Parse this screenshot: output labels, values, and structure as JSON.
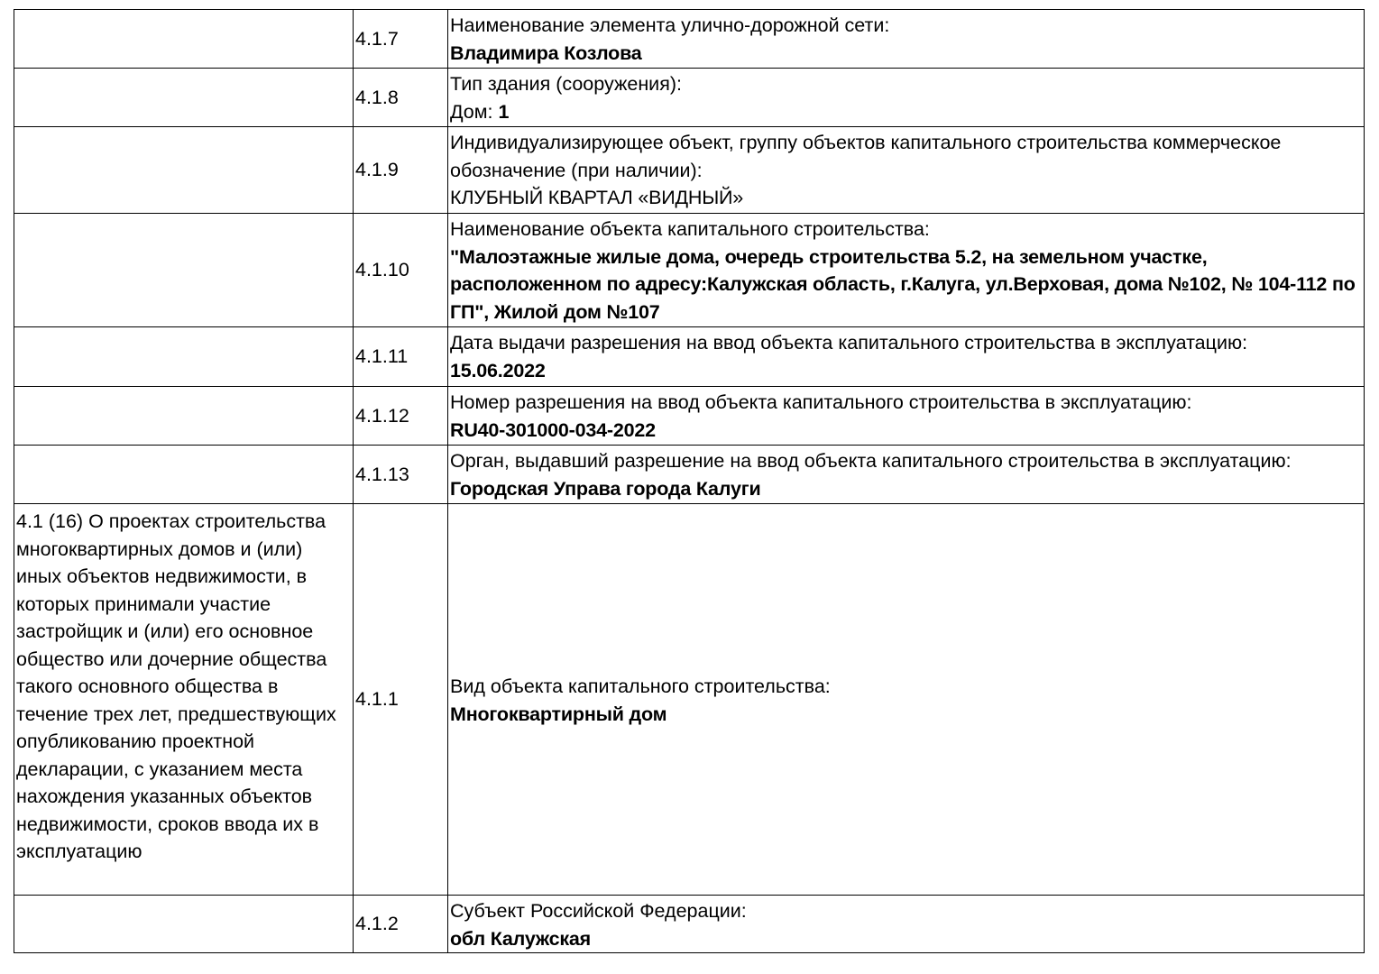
{
  "rows": [
    {
      "num": "4.1.7",
      "label": "Наименование элемента улично-дорожной сети:",
      "value": "Владимира Козлова"
    },
    {
      "num": "4.1.8",
      "label": "Тип здания (сооружения):",
      "value_prefix": "Дом: ",
      "value": "1"
    },
    {
      "num": "4.1.9",
      "label": "Индивидуализирующее объект, группу объектов капитального строительства коммерческое обозначение (при наличии):",
      "value": "КЛУБНЫЙ КВАРТАЛ «ВИДНЫЙ»"
    },
    {
      "num": "4.1.10",
      "label": "Наименование объекта капитального строительства:",
      "value": "\"Малоэтажные жилые дома, очередь строительства 5.2, на земельном участке, расположенном по адресу:Калужская область, г.Калуга, ул.Верховая, дома №102, № 104-112 по ГП\", Жилой дом №107"
    },
    {
      "num": "4.1.11",
      "label": "Дата выдачи разрешения на ввод объекта капитального строительства в эксплуатацию:",
      "value": "15.06.2022"
    },
    {
      "num": "4.1.12",
      "label": "Номер разрешения на ввод объекта капитального строительства в эксплуатацию:",
      "value": "RU40-301000-034-2022"
    },
    {
      "num": "4.1.13",
      "label": "Орган, выдавший разрешение на ввод объекта капитального строительства в эксплуатацию:",
      "value": "Городская Управа города Калуги"
    },
    {
      "section": "4.1 (16) О проектах строительства многоквартирных домов и (или) иных объектов недвижимости, в которых принимали участие застройщик и (или) его основное общество или дочерние общества такого основного общества в течение трех лет, предшествующих опубликованию проектной декларации, с указанием места нахождения указанных объектов недвижимости, сроков ввода их в эксплуатацию",
      "num": "4.1.1",
      "label": "Вид объекта капитального строительства:",
      "value": "Многоквартирный дом"
    },
    {
      "num": "4.1.2",
      "label": "Субъект Российской Федерации:",
      "value": "обл Калужская"
    }
  ]
}
